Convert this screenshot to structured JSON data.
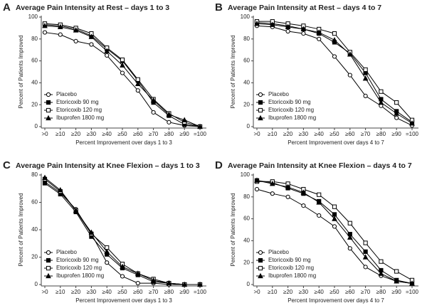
{
  "chart_data": [
    {
      "type": "line",
      "panel": "A",
      "title": "Average Pain Intensity at Rest – days 1 to 3",
      "x_label": "Percent Improvement over days 1 to 3",
      "y_label": "Percent of Patients Improved",
      "categories": [
        ">0",
        "≥10",
        "≥20",
        "≥30",
        "≥40",
        "≥50",
        "≥60",
        "≥70",
        "≥80",
        "≥90",
        "=100"
      ],
      "ylim": [
        0,
        100
      ],
      "yticks": [
        0,
        20,
        40,
        60,
        80,
        100
      ],
      "legend": "lower left",
      "series": [
        {
          "name": "Placebo",
          "color": "#000000",
          "marker": "open-circle",
          "values": [
            86,
            84,
            78,
            75,
            65,
            49,
            33,
            13,
            4,
            1,
            0
          ]
        },
        {
          "name": "Etoricoxib 90 mg",
          "color": "#000000",
          "marker": "filled-square",
          "values": [
            93,
            92,
            89,
            83,
            71,
            60,
            42,
            22,
            10,
            2,
            0
          ]
        },
        {
          "name": "Etoricoxib 120 mg",
          "color": "#000000",
          "marker": "open-square",
          "values": [
            94,
            93,
            90,
            85,
            72,
            61,
            43,
            25,
            12,
            4,
            0
          ]
        },
        {
          "name": "Ibuprofen 1800 mg",
          "color": "#000000",
          "marker": "filled-triangle",
          "values": [
            92,
            91,
            88,
            82,
            69,
            56,
            39,
            24,
            11,
            6,
            0
          ]
        }
      ]
    },
    {
      "type": "line",
      "panel": "B",
      "title": "Average Pain Intensity at Rest – days 4 to 7",
      "x_label": "Percent Improvement over days 4 to 7",
      "y_label": "Percent of Patients Improved",
      "categories": [
        ">0",
        "≥10",
        "≥20",
        "≥30",
        "≥40",
        "≥50",
        "≥60",
        "≥70",
        "≥80",
        "≥90",
        "=100"
      ],
      "ylim": [
        0,
        100
      ],
      "yticks": [
        0,
        20,
        40,
        60,
        80,
        100
      ],
      "legend": "lower left",
      "series": [
        {
          "name": "Placebo",
          "color": "#000000",
          "marker": "open-circle",
          "values": [
            92,
            91,
            87,
            85,
            80,
            64,
            47,
            28,
            19,
            8,
            1
          ]
        },
        {
          "name": "Etoricoxib 90 mg",
          "color": "#000000",
          "marker": "filled-square",
          "values": [
            95,
            94,
            92,
            89,
            85,
            77,
            67,
            49,
            25,
            14,
            4
          ]
        },
        {
          "name": "Etoricoxib 120 mg",
          "color": "#000000",
          "marker": "open-square",
          "values": [
            96,
            96,
            94,
            92,
            89,
            85,
            68,
            52,
            32,
            22,
            6
          ]
        },
        {
          "name": "Ibuprofen 1800 mg",
          "color": "#000000",
          "marker": "filled-triangle",
          "values": [
            94,
            93,
            91,
            89,
            86,
            79,
            66,
            44,
            22,
            12,
            3
          ]
        }
      ]
    },
    {
      "type": "line",
      "panel": "C",
      "title": "Average Pain Intensity at Knee Flexion – days 1 to 3",
      "x_label": "Percent Improvement over days 1 to 3",
      "y_label": "Percent of Patients Improved",
      "categories": [
        ">0",
        "≥10",
        "≥20",
        "≥30",
        "≥40",
        "≥50",
        "≥60",
        "≥70",
        "≥80",
        "≥90",
        "=100"
      ],
      "ylim": [
        0,
        80
      ],
      "yticks": [
        0,
        20,
        40,
        60,
        80
      ],
      "legend": "lower left",
      "series": [
        {
          "name": "Placebo",
          "color": "#000000",
          "marker": "open-circle",
          "values": [
            75,
            67,
            55,
            37,
            16,
            6,
            1,
            1,
            0,
            0,
            0
          ]
        },
        {
          "name": "Etoricoxib 90 mg",
          "color": "#000000",
          "marker": "filled-square",
          "values": [
            74,
            66,
            53,
            35,
            22,
            12,
            7,
            2,
            1,
            0,
            0
          ]
        },
        {
          "name": "Etoricoxib 120 mg",
          "color": "#000000",
          "marker": "open-square",
          "values": [
            77,
            68,
            54,
            37,
            27,
            15,
            8,
            4,
            1,
            0,
            0
          ]
        },
        {
          "name": "Ibuprofen 1800 mg",
          "color": "#000000",
          "marker": "filled-triangle",
          "values": [
            78,
            69,
            54,
            38,
            24,
            13,
            8,
            3,
            1,
            0,
            0
          ]
        }
      ]
    },
    {
      "type": "line",
      "panel": "D",
      "title": "Average Pain Intensity at Knee Flexion – days 4 to 7",
      "x_label": "Percent Improvement over days 4 to 7",
      "y_label": "Percent of Patients Improved",
      "categories": [
        ">0",
        "≥10",
        "≥20",
        "≥30",
        "≥40",
        "≥50",
        "≥60",
        "≥70",
        "≥80",
        "≥90",
        "=100"
      ],
      "ylim": [
        0,
        100
      ],
      "yticks": [
        0,
        20,
        40,
        60,
        80,
        100
      ],
      "legend": "lower left",
      "series": [
        {
          "name": "Placebo",
          "color": "#000000",
          "marker": "open-circle",
          "values": [
            87,
            83,
            80,
            72,
            63,
            53,
            33,
            16,
            8,
            3,
            1
          ]
        },
        {
          "name": "Etoricoxib 90 mg",
          "color": "#000000",
          "marker": "filled-square",
          "values": [
            95,
            93,
            88,
            83,
            76,
            64,
            46,
            30,
            13,
            4,
            1
          ]
        },
        {
          "name": "Etoricoxib 120 mg",
          "color": "#000000",
          "marker": "open-square",
          "values": [
            94,
            94,
            92,
            87,
            82,
            71,
            56,
            38,
            21,
            12,
            4
          ]
        },
        {
          "name": "Ibuprofen 1800 mg",
          "color": "#000000",
          "marker": "filled-triangle",
          "values": [
            95,
            92,
            89,
            84,
            75,
            60,
            43,
            25,
            10,
            3,
            1
          ]
        }
      ]
    }
  ]
}
